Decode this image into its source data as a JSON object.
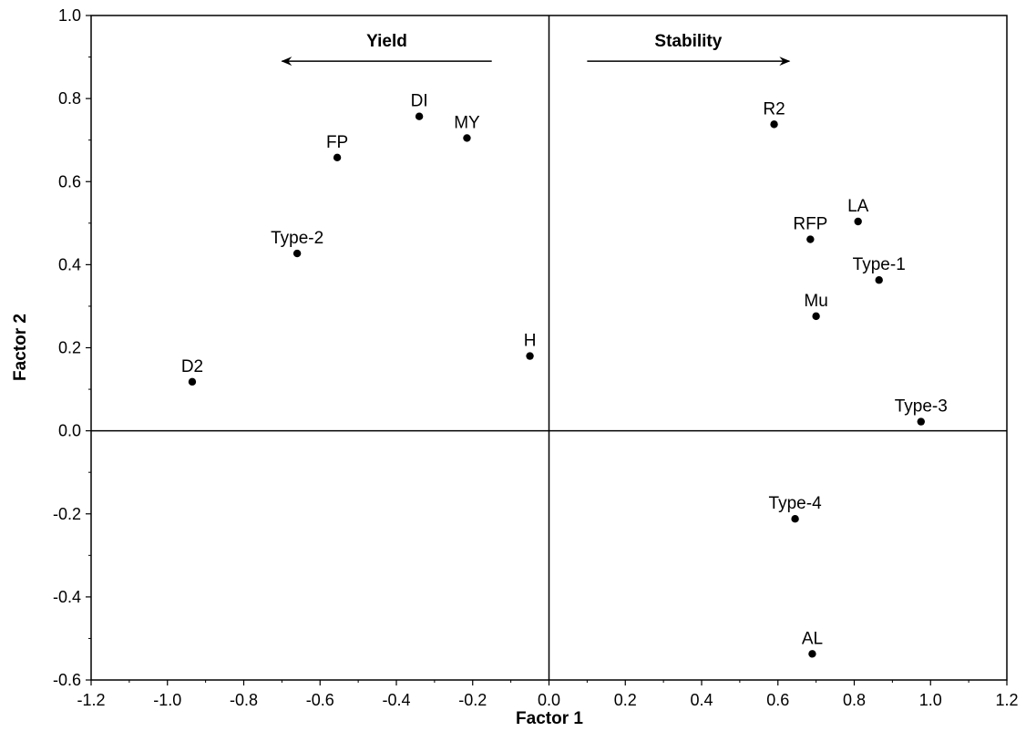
{
  "chart_data": {
    "type": "scatter",
    "xlabel": "Factor 1",
    "ylabel": "Factor 2",
    "xlim": [
      -1.2,
      1.2
    ],
    "ylim": [
      -0.6,
      1.0
    ],
    "x_ticks": [
      -1.2,
      -1.0,
      -0.8,
      -0.6,
      -0.4,
      -0.2,
      0.0,
      0.2,
      0.4,
      0.6,
      0.8,
      1.0,
      1.2
    ],
    "y_ticks": [
      -0.6,
      -0.4,
      -0.2,
      0.0,
      0.2,
      0.4,
      0.6,
      0.8,
      1.0
    ],
    "x_tick_labels": [
      "-1.2",
      "-1.0",
      "-0.8",
      "-0.6",
      "-0.4",
      "-0.2",
      "0.0",
      "0.2",
      "0.4",
      "0.6",
      "0.8",
      "1.0",
      "1.2"
    ],
    "y_tick_labels": [
      "-0.6",
      "-0.4",
      "-0.2",
      "0.0",
      "0.2",
      "0.4",
      "0.6",
      "0.8",
      "1.0"
    ],
    "grid": false,
    "reference_lines": {
      "x": 0.0,
      "y": 0.0
    },
    "annotations": [
      {
        "text": "Yield",
        "direction": "left",
        "arrow_from": -0.15,
        "arrow_to": -0.7,
        "y": 0.89
      },
      {
        "text": "Stability",
        "direction": "right",
        "arrow_from": 0.1,
        "arrow_to": 0.63,
        "y": 0.89
      }
    ],
    "points": [
      {
        "label": "DI",
        "x": -0.34,
        "y": 0.757
      },
      {
        "label": "MY",
        "x": -0.215,
        "y": 0.705
      },
      {
        "label": "FP",
        "x": -0.555,
        "y": 0.658
      },
      {
        "label": "Type-2",
        "x": -0.66,
        "y": 0.427
      },
      {
        "label": "D2",
        "x": -0.935,
        "y": 0.118
      },
      {
        "label": "H",
        "x": -0.05,
        "y": 0.18
      },
      {
        "label": "R2",
        "x": 0.59,
        "y": 0.738
      },
      {
        "label": "LA",
        "x": 0.81,
        "y": 0.504
      },
      {
        "label": "RFP",
        "x": 0.685,
        "y": 0.461
      },
      {
        "label": "Type-1",
        "x": 0.865,
        "y": 0.363
      },
      {
        "label": "Mu",
        "x": 0.7,
        "y": 0.276
      },
      {
        "label": "Type-3",
        "x": 0.975,
        "y": 0.022
      },
      {
        "label": "Type-4",
        "x": 0.645,
        "y": -0.212
      },
      {
        "label": "AL",
        "x": 0.69,
        "y": -0.537
      }
    ]
  }
}
